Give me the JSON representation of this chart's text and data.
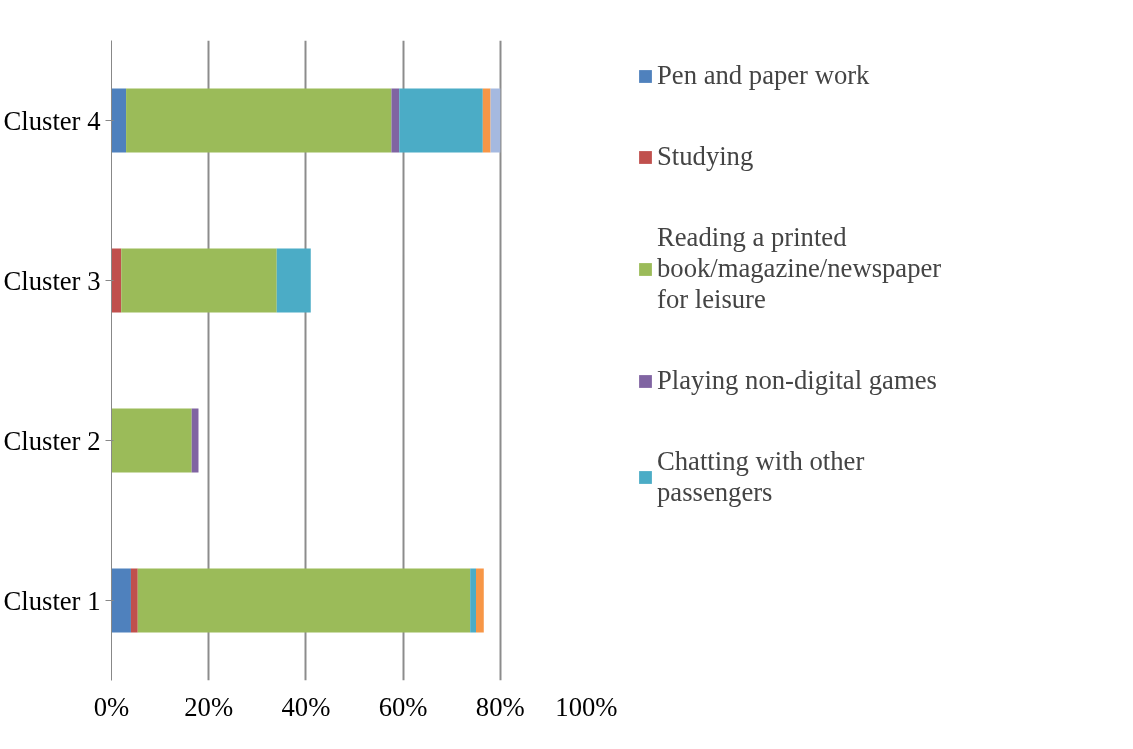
{
  "chart_data": {
    "type": "bar",
    "orientation": "horizontal",
    "stacked": true,
    "categories": [
      "Cluster 4",
      "Cluster 3",
      "Cluster 2",
      "Cluster 1"
    ],
    "series": [
      {
        "name": "Pen and paper work",
        "color": "#4f81bd",
        "values": [
          3.0,
          null,
          null,
          4.0
        ]
      },
      {
        "name": "Studying",
        "color": "#c0504d",
        "values": [
          null,
          2.0,
          null,
          1.4
        ]
      },
      {
        "name": "Reading a printed book/magazine/newspaper for leisure",
        "color": "#9bbb59",
        "values": [
          54.6,
          32.0,
          16.5,
          68.4
        ]
      },
      {
        "name": "Playing non-digital games",
        "color": "#8064a2",
        "values": [
          1.6,
          null,
          1.4,
          null
        ]
      },
      {
        "name": "Chatting with other passengers",
        "color": "#4bacc6",
        "values": [
          17.2,
          7.0,
          null,
          1.2
        ]
      },
      {
        "color": "#f79646",
        "values": [
          1.6,
          null,
          null,
          1.6
        ]
      },
      {
        "color": "#a5b9e0",
        "values": [
          2.0,
          null,
          null,
          null
        ]
      }
    ],
    "xlim": [
      0,
      100
    ],
    "xticks": [
      {
        "value": 0,
        "label": "0%"
      },
      {
        "value": 20,
        "label": "20%"
      },
      {
        "value": 40,
        "label": "40%"
      },
      {
        "value": 60,
        "label": "60%"
      },
      {
        "value": 80,
        "label": "80%"
      },
      {
        "value": 100,
        "label": "100%"
      }
    ],
    "grid": "x",
    "legend": "right"
  }
}
